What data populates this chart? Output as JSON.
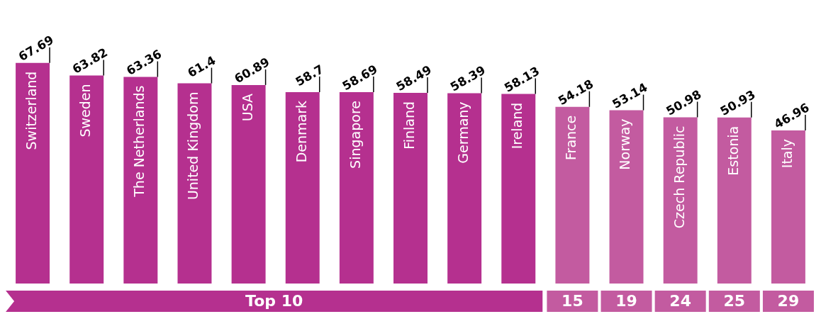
{
  "chart_data": {
    "type": "bar",
    "categories": [
      "Switzerland",
      "Sweden",
      "The Netherlands",
      "United Kingdom",
      "USA",
      "Denmark",
      "Singapore",
      "Finland",
      "Germany",
      "Ireland",
      "France",
      "Norway",
      "Czech Republic",
      "Estonia",
      "Italy"
    ],
    "values": [
      67.69,
      63.82,
      63.36,
      61.4,
      60.89,
      58.7,
      58.69,
      58.49,
      58.39,
      58.13,
      54.18,
      53.14,
      50.98,
      50.93,
      46.96
    ],
    "colors": [
      "#b5308f",
      "#b5308f",
      "#b5308f",
      "#b5308f",
      "#b5308f",
      "#b5308f",
      "#b5308f",
      "#b5308f",
      "#b5308f",
      "#b5308f",
      "#c35ba0",
      "#c35ba0",
      "#c35ba0",
      "#c35ba0",
      "#c35ba0"
    ],
    "data_labels": true,
    "legend": false,
    "annotations": [
      "Top 10",
      "15",
      "19",
      "24",
      "25",
      "29"
    ]
  }
}
